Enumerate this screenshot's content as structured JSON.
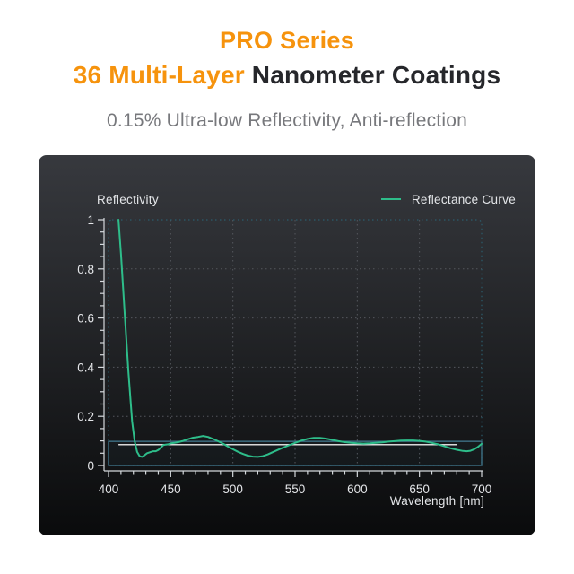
{
  "header": {
    "title_line1": "PRO Series",
    "title_line2_highlight": "36 Multi-Layer",
    "title_line2_rest": " Nanometer Coatings",
    "subtitle": "0.15% Ultra-low Reflectivity, Anti-reflection",
    "accent_color": "#F6930D",
    "dark_text_color": "#26272B",
    "subtitle_color": "#77787C"
  },
  "panel": {
    "bg_top": "#37393E",
    "bg_bottom": "#0A0B0C"
  },
  "chart_data": {
    "type": "line",
    "axis_title": "Reflectivity",
    "xlabel": "Wavelength [nm]",
    "legend": [
      {
        "label": "Reflectance Curve",
        "color": "#2EBD8A"
      }
    ],
    "legend_position": "top-right",
    "xlim": [
      400,
      700
    ],
    "ylim": [
      0,
      1
    ],
    "x_ticks": [
      400,
      450,
      500,
      550,
      600,
      650,
      700
    ],
    "x_minor_step": 10,
    "y_ticks": [
      0,
      0.2,
      0.4,
      0.6,
      0.8,
      1
    ],
    "y_tick_labels": [
      "0",
      "0.2",
      "0.4",
      "0.6",
      "0.8",
      "1"
    ],
    "y_minor_step": 0.05,
    "grid": "dotted",
    "grid_color": "#54575D",
    "frame_color": "#2B5C6C",
    "axis_color": "#D4D8DC",
    "text_color": "#E4E6E9",
    "series": [
      {
        "name": "Reflectance Curve",
        "color": "#2EBD8A",
        "points": [
          [
            408,
            1.0
          ],
          [
            410,
            0.86
          ],
          [
            413,
            0.62
          ],
          [
            416,
            0.38
          ],
          [
            419,
            0.18
          ],
          [
            421,
            0.1
          ],
          [
            423,
            0.055
          ],
          [
            425,
            0.038
          ],
          [
            427,
            0.035
          ],
          [
            429,
            0.042
          ],
          [
            431,
            0.05
          ],
          [
            434,
            0.055
          ],
          [
            436,
            0.058
          ],
          [
            438,
            0.058
          ],
          [
            440,
            0.063
          ],
          [
            442,
            0.072
          ],
          [
            444,
            0.083
          ],
          [
            446,
            0.085
          ],
          [
            448,
            0.086
          ],
          [
            450,
            0.09
          ],
          [
            453,
            0.092
          ],
          [
            456,
            0.095
          ],
          [
            460,
            0.1
          ],
          [
            464,
            0.107
          ],
          [
            468,
            0.113
          ],
          [
            472,
            0.116
          ],
          [
            476,
            0.12
          ],
          [
            480,
            0.116
          ],
          [
            484,
            0.108
          ],
          [
            488,
            0.099
          ],
          [
            492,
            0.089
          ],
          [
            496,
            0.077
          ],
          [
            500,
            0.066
          ],
          [
            504,
            0.056
          ],
          [
            508,
            0.047
          ],
          [
            512,
            0.04
          ],
          [
            516,
            0.036
          ],
          [
            520,
            0.035
          ],
          [
            524,
            0.038
          ],
          [
            528,
            0.045
          ],
          [
            532,
            0.054
          ],
          [
            536,
            0.063
          ],
          [
            540,
            0.072
          ],
          [
            545,
            0.082
          ],
          [
            550,
            0.092
          ],
          [
            555,
            0.101
          ],
          [
            560,
            0.108
          ],
          [
            565,
            0.112
          ],
          [
            570,
            0.112
          ],
          [
            575,
            0.109
          ],
          [
            580,
            0.104
          ],
          [
            585,
            0.099
          ],
          [
            590,
            0.095
          ],
          [
            595,
            0.092
          ],
          [
            600,
            0.09
          ],
          [
            605,
            0.089
          ],
          [
            610,
            0.09
          ],
          [
            615,
            0.092
          ],
          [
            620,
            0.094
          ],
          [
            625,
            0.097
          ],
          [
            630,
            0.099
          ],
          [
            635,
            0.101
          ],
          [
            640,
            0.102
          ],
          [
            645,
            0.102
          ],
          [
            650,
            0.1
          ],
          [
            655,
            0.097
          ],
          [
            660,
            0.092
          ],
          [
            665,
            0.086
          ],
          [
            670,
            0.078
          ],
          [
            675,
            0.07
          ],
          [
            680,
            0.064
          ],
          [
            685,
            0.059
          ],
          [
            688,
            0.058
          ],
          [
            691,
            0.06
          ],
          [
            694,
            0.066
          ],
          [
            697,
            0.075
          ],
          [
            700,
            0.088
          ]
        ]
      }
    ],
    "annotations": {
      "reference_band": {
        "from": 0,
        "to": 0.098,
        "color": "#3E7186"
      },
      "reference_line": {
        "value": 0.085,
        "x_from": 408,
        "x_to": 680,
        "color": "#D9D9D9"
      }
    }
  }
}
